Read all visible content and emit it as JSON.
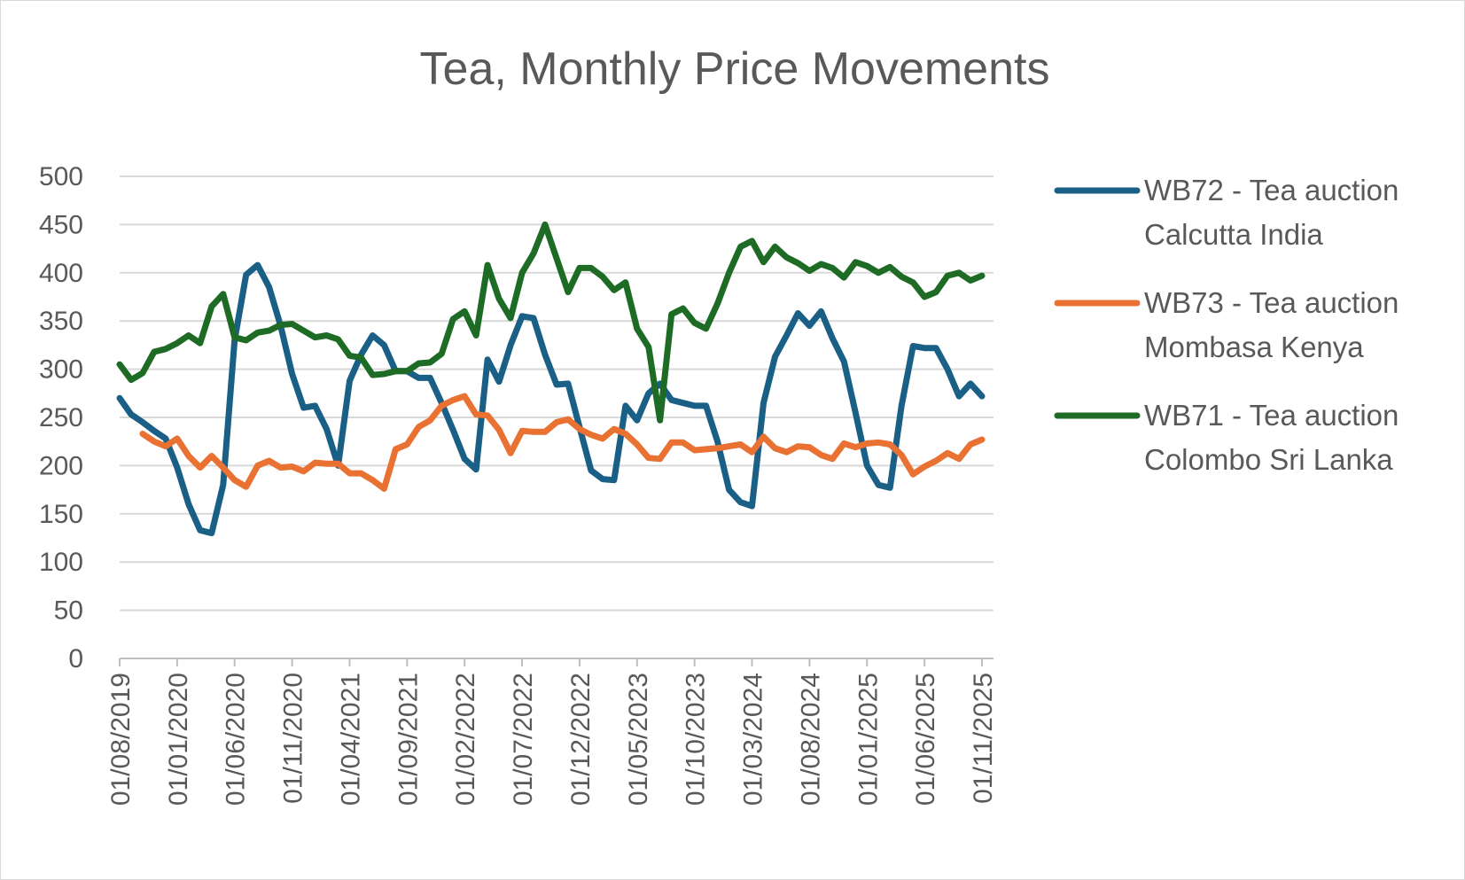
{
  "chart_data": {
    "type": "line",
    "title": "Tea, Monthly Price Movements",
    "xlabel": "",
    "ylabel": "",
    "ylim": [
      0,
      500
    ],
    "yticks": [
      0,
      50,
      100,
      150,
      200,
      250,
      300,
      350,
      400,
      450,
      500
    ],
    "grid": true,
    "legend": "right",
    "x_start": "01/08/2019",
    "x_tick_labels": [
      "01/08/2019",
      "01/01/2020",
      "01/06/2020",
      "01/11/2020",
      "01/04/2021",
      "01/09/2021",
      "01/02/2022",
      "01/07/2022",
      "01/12/2022",
      "01/05/2023",
      "01/10/2023",
      "01/03/2024",
      "01/08/2024",
      "01/01/2025",
      "01/06/2025",
      "01/11/2025"
    ],
    "series": [
      {
        "name": "WB72 - Tea auction Calcutta India",
        "legend_lines": [
          "WB72 - Tea auction",
          "Calcutta India"
        ],
        "color": "#1a5f85",
        "values": [
          270,
          253,
          245,
          236,
          228,
          198,
          160,
          133,
          130,
          180,
          330,
          398,
          408,
          385,
          345,
          295,
          260,
          262,
          238,
          200,
          288,
          315,
          335,
          325,
          298,
          298,
          291,
          291,
          265,
          237,
          207,
          196,
          310,
          287,
          325,
          355,
          353,
          315,
          284,
          285,
          240,
          195,
          186,
          185,
          262,
          247,
          275,
          285,
          268,
          265,
          262,
          262,
          225,
          175,
          162,
          158,
          265,
          313,
          335,
          358,
          345,
          360,
          332,
          308,
          255,
          200,
          180,
          177,
          262,
          324,
          322,
          322,
          300,
          272,
          285,
          272
        ]
      },
      {
        "name": "WB73 - Tea auction Mombasa Kenya",
        "legend_lines": [
          "WB73 - Tea auction",
          "Mombasa Kenya"
        ],
        "color": "#e97132",
        "values": [
          null,
          null,
          233,
          225,
          220,
          228,
          210,
          198,
          210,
          198,
          185,
          178,
          200,
          205,
          198,
          199,
          194,
          203,
          202,
          202,
          192,
          192,
          185,
          176,
          217,
          222,
          240,
          247,
          262,
          268,
          272,
          253,
          252,
          237,
          213,
          236,
          235,
          235,
          245,
          248,
          238,
          232,
          228,
          238,
          233,
          222,
          208,
          207,
          224,
          224,
          216,
          217,
          218,
          220,
          222,
          214,
          230,
          218,
          214,
          220,
          219,
          211,
          207,
          223,
          219,
          223,
          224,
          222,
          211,
          191,
          199,
          205,
          213,
          207,
          222,
          227
        ]
      },
      {
        "name": "WB71 - Tea auction Colombo Sri Lanka",
        "legend_lines": [
          "WB71 - Tea auction",
          "Colombo Sri Lanka"
        ],
        "color": "#1d6b24",
        "values": [
          305,
          289,
          296,
          318,
          321,
          327,
          335,
          327,
          365,
          378,
          333,
          330,
          338,
          340,
          346,
          347,
          340,
          333,
          335,
          331,
          314,
          312,
          294,
          295,
          298,
          298,
          306,
          307,
          316,
          352,
          360,
          335,
          408,
          373,
          353,
          400,
          420,
          450,
          415,
          380,
          405,
          405,
          396,
          382,
          390,
          342,
          323,
          247,
          357,
          363,
          348,
          342,
          368,
          400,
          427,
          433,
          411,
          427,
          416,
          410,
          402,
          409,
          405,
          395,
          411,
          407,
          400,
          406,
          396,
          390,
          375,
          380,
          397,
          400,
          392,
          397
        ]
      }
    ]
  }
}
